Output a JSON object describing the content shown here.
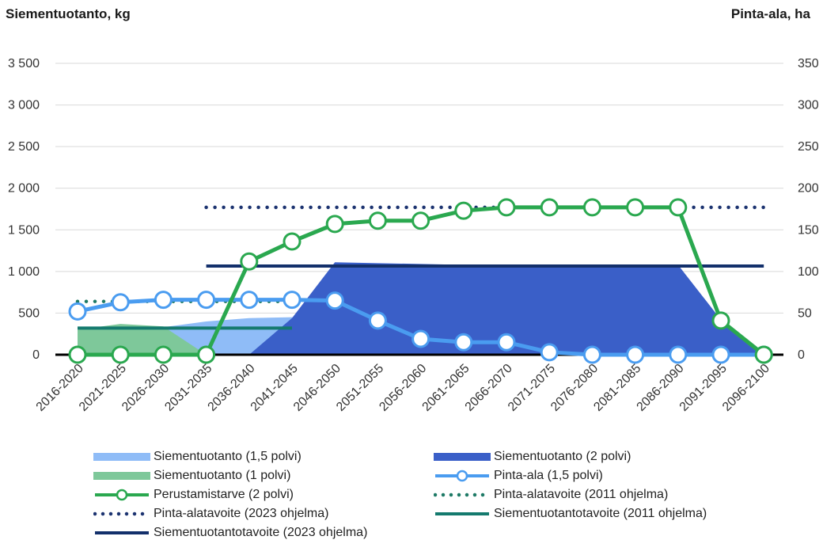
{
  "chart_data": {
    "type": "area",
    "title": "",
    "y_left_label": "Siementuotanto, kg",
    "y_right_label": "Pinta-ala, ha",
    "categories": [
      "2016-2020",
      "2021-2025",
      "2026-2030",
      "2031-2035",
      "2036-2040",
      "2041-2045",
      "2046-2050",
      "2051-2055",
      "2056-2060",
      "2061-2065",
      "2066-2070",
      "2071-2075",
      "2076-2080",
      "2081-2085",
      "2086-2090",
      "2091-2095",
      "2096-2100"
    ],
    "y_left": {
      "min": 0,
      "max": 3500,
      "ticks": [
        0,
        500,
        1000,
        1500,
        2000,
        2500,
        3000,
        3500
      ],
      "tick_labels": [
        "0",
        "500",
        "1 000",
        "1 500",
        "2 000",
        "2 500",
        "3 000",
        "3 500"
      ]
    },
    "y_right": {
      "min": 0,
      "max": 350,
      "ticks": [
        0,
        50,
        100,
        150,
        200,
        250,
        300,
        350
      ],
      "tick_labels": [
        "0",
        "50",
        "100",
        "150",
        "200",
        "250",
        "300",
        "350"
      ]
    },
    "grid": true,
    "legend_position": "bottom",
    "series": [
      {
        "name": "Siementuotanto (1,5 polvi)",
        "kind": "area",
        "axis": "left",
        "color": "#8fbcf7",
        "values": [
          230,
          300,
          330,
          400,
          440,
          450,
          450,
          300,
          150,
          120,
          100,
          40,
          20,
          0,
          0,
          0,
          0
        ]
      },
      {
        "name": "Siementuotanto (2 polvi)",
        "kind": "area",
        "axis": "left",
        "color": "#3a5fc8",
        "values": [
          0,
          0,
          0,
          0,
          0,
          440,
          1110,
          1100,
          1090,
          1080,
          1080,
          1080,
          1080,
          1080,
          1080,
          420,
          0
        ]
      },
      {
        "name": "Siementuotanto (1 polvi)",
        "kind": "area",
        "axis": "left",
        "color": "#7ec89a",
        "values": [
          300,
          370,
          340,
          0,
          0,
          0,
          0,
          0,
          0,
          0,
          0,
          0,
          0,
          0,
          0,
          0,
          0
        ]
      },
      {
        "name": "Pinta-ala (1,5 polvi)",
        "kind": "line-marker",
        "axis": "right",
        "color": "#4a9cf0",
        "values": [
          52,
          63,
          66,
          66,
          66,
          66,
          65,
          41,
          19,
          15,
          15,
          3,
          0,
          0,
          0,
          0,
          0
        ]
      },
      {
        "name": "Perustamistarve (2 polvi)",
        "kind": "line-marker",
        "axis": "right",
        "color": "#2aa84f",
        "values": [
          0,
          0,
          0,
          0,
          112,
          136,
          157,
          161,
          161,
          173,
          177,
          177,
          177,
          177,
          177,
          41,
          0
        ]
      },
      {
        "name": "Pinta-alatavoite (2011 ohjelma)",
        "kind": "dotted",
        "axis": "right",
        "color": "#1e7a66",
        "from": "2016-2020",
        "to": "2041-2045",
        "value": 64
      },
      {
        "name": "Pinta-alatavoite (2023 ohjelma)",
        "kind": "dotted",
        "axis": "right",
        "color": "#1c3370",
        "from": "2031-2035",
        "to": "2096-2100",
        "value": 177
      },
      {
        "name": "Siementuotantotavoite (2011 ohjelma)",
        "kind": "solid",
        "axis": "left",
        "color": "#147a6e",
        "from": "2016-2020",
        "to": "2041-2045",
        "value": 320
      },
      {
        "name": "Siementuotantotavoite (2023 ohjelma)",
        "kind": "solid",
        "axis": "left",
        "color": "#13306b",
        "from": "2031-2035",
        "to": "2096-2100",
        "value": 1065
      }
    ]
  }
}
